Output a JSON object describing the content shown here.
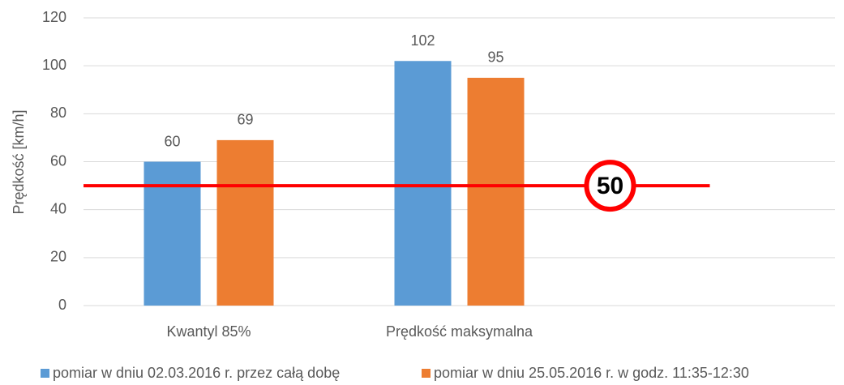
{
  "chart_data": {
    "type": "bar",
    "y_label": "Prędkość [km/h]",
    "categories": [
      "Kwantyl 85%",
      "Prędkość maksymalna",
      null
    ],
    "series": [
      {
        "name": "pomiar w dniu 02.03.2016 r. przez całą dobę",
        "color": "#5b9bd5",
        "values": [
          60,
          102,
          null
        ]
      },
      {
        "name": "pomiar w dniu 25.05.2016 r. w godz. 11:35-12:30",
        "color": "#ed7d31",
        "values": [
          69,
          95,
          null
        ]
      }
    ],
    "ylim": [
      0,
      120
    ],
    "yticks": [
      0,
      20,
      40,
      60,
      80,
      100,
      120
    ],
    "grid": true,
    "speed_limit": 50,
    "speed_limit_color": "#ff0000",
    "legend": "bottom"
  }
}
